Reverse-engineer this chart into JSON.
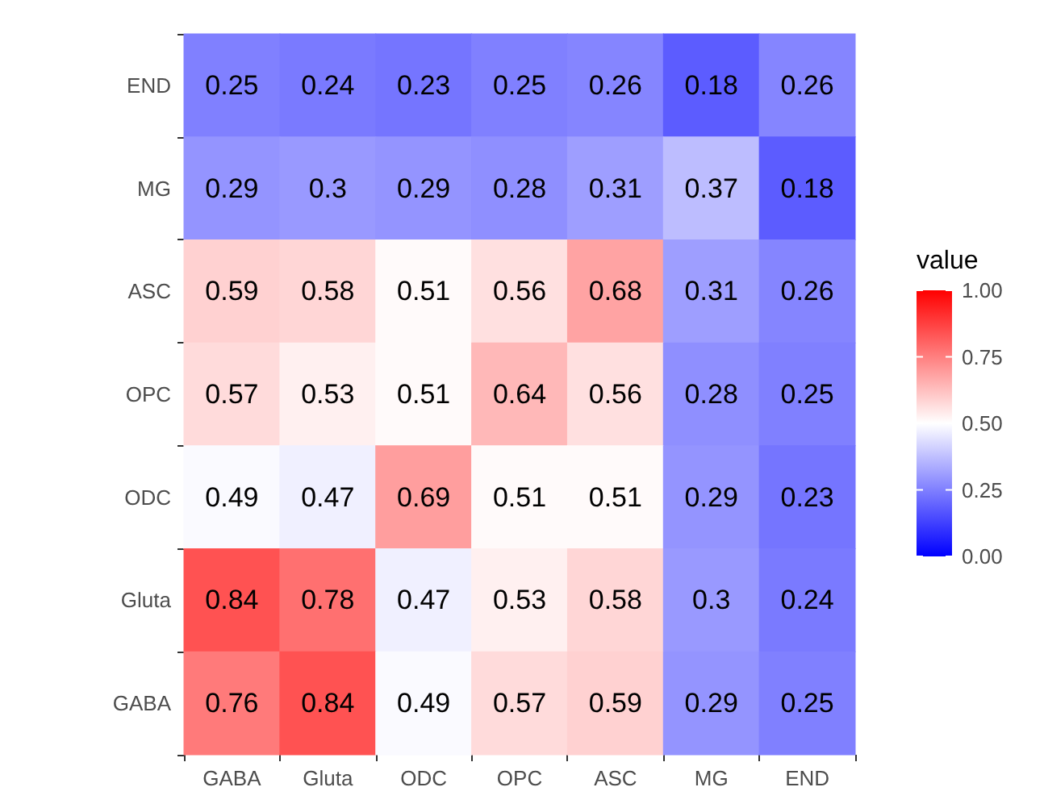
{
  "chart_data": {
    "type": "heatmap",
    "legend_title": "value",
    "categories": [
      "GABA",
      "Gluta",
      "ODC",
      "OPC",
      "ASC",
      "MG",
      "END"
    ],
    "y_categories": [
      "END",
      "MG",
      "ASC",
      "OPC",
      "ODC",
      "Gluta",
      "GABA"
    ],
    "cells": [
      [
        0.25,
        0.24,
        0.23,
        0.25,
        0.26,
        0.18,
        0.26
      ],
      [
        0.29,
        0.3,
        0.29,
        0.28,
        0.31,
        0.37,
        0.18
      ],
      [
        0.59,
        0.58,
        0.51,
        0.56,
        0.68,
        0.31,
        0.26
      ],
      [
        0.57,
        0.53,
        0.51,
        0.64,
        0.56,
        0.28,
        0.25
      ],
      [
        0.49,
        0.47,
        0.69,
        0.51,
        0.51,
        0.29,
        0.23
      ],
      [
        0.84,
        0.78,
        0.47,
        0.53,
        0.58,
        0.3,
        0.24
      ],
      [
        0.76,
        0.84,
        0.49,
        0.57,
        0.59,
        0.29,
        0.25
      ]
    ],
    "data_labels": true,
    "clim": [
      0,
      1
    ],
    "cticks": [
      {
        "value": 0,
        "label": "0.00"
      },
      {
        "value": 0.25,
        "label": "0.25"
      },
      {
        "value": 0.5,
        "label": "0.50"
      },
      {
        "value": 0.75,
        "label": "0.75"
      },
      {
        "value": 1,
        "label": "1.00"
      }
    ]
  }
}
